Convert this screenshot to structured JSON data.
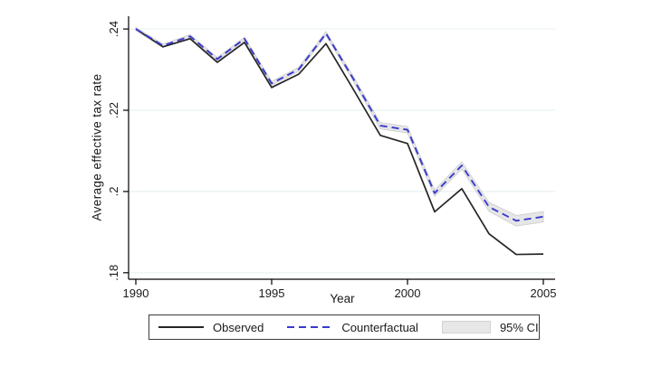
{
  "axes": {
    "x_title": "Year",
    "y_title": "Average effective tax rate",
    "x_tick_labels": [
      "1990",
      "1995",
      "2000",
      "2005"
    ],
    "y_tick_labels": [
      ".18",
      ".2",
      ".22",
      ".24"
    ]
  },
  "legend": {
    "observed_label": "Observed",
    "counterfactual_label": "Counterfactual",
    "ci_label": "95% CI"
  },
  "colors": {
    "observed_line": "#262626",
    "counterfactual_line": "#3939cf",
    "ci_fill": "#e6e6e6",
    "ci_edge": "#cccccc",
    "gridline": "#eaf2f3",
    "axis": "#000000"
  },
  "chart_data": {
    "type": "line",
    "title": "",
    "xlabel": "Year",
    "ylabel": "Average effective tax rate",
    "x": [
      1990,
      1991,
      1992,
      1993,
      1994,
      1995,
      1996,
      1997,
      1998,
      1999,
      2000,
      2001,
      2002,
      2003,
      2004,
      2005
    ],
    "series": [
      {
        "name": "Observed",
        "style": "solid",
        "values": [
          0.24,
          0.2356,
          0.2376,
          0.2318,
          0.2367,
          0.2256,
          0.2289,
          0.2364,
          0.2252,
          0.2138,
          0.2118,
          0.195,
          0.2007,
          0.1896,
          0.1845,
          0.1846
        ]
      },
      {
        "name": "Counterfactual",
        "style": "dashed",
        "values": [
          0.24,
          0.2359,
          0.2382,
          0.2326,
          0.2376,
          0.2266,
          0.2301,
          0.2389,
          0.2278,
          0.2162,
          0.2152,
          0.1996,
          0.2064,
          0.1962,
          0.1928,
          0.1938
        ]
      }
    ],
    "ci": {
      "name": "95% CI",
      "around": "Counterfactual",
      "halfwidth": [
        0.0004,
        0.0004,
        0.0004,
        0.0004,
        0.0004,
        0.0005,
        0.0005,
        0.0005,
        0.0006,
        0.0008,
        0.0008,
        0.0008,
        0.0009,
        0.0011,
        0.0013,
        0.0013
      ]
    },
    "xticks": [
      1990,
      1995,
      2000,
      2005
    ],
    "yticks": [
      0.18,
      0.2,
      0.22,
      0.24
    ],
    "xlim": [
      1989.73,
      2005.43
    ],
    "ylim": [
      0.1784,
      0.2438
    ],
    "grid": "horizontal",
    "legend_position": "bottom"
  }
}
